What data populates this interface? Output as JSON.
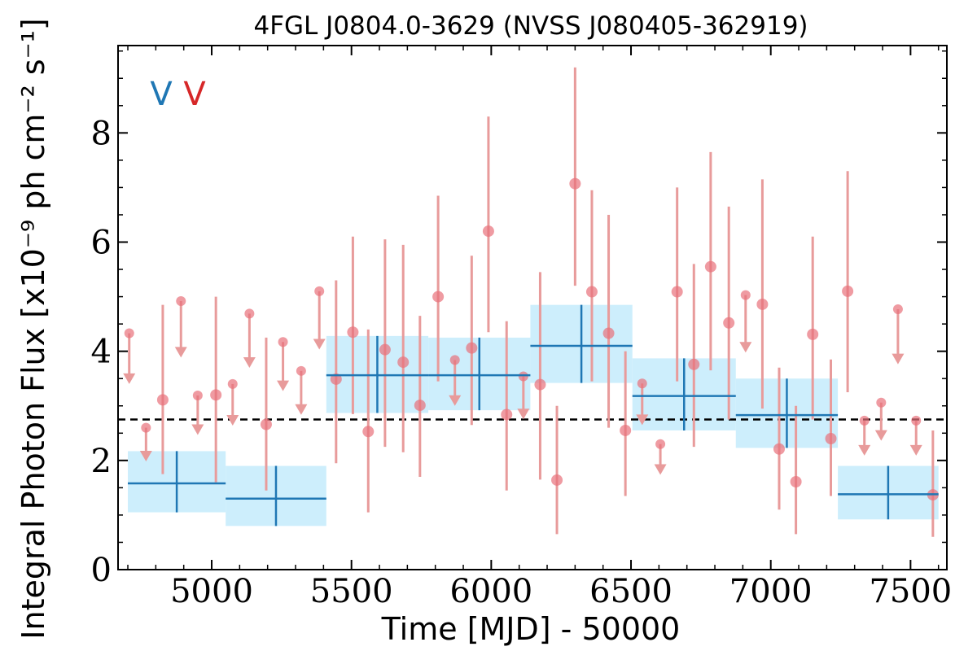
{
  "chart_data": {
    "type": "scatter",
    "title": "4FGL J0804.0-3629 (NVSS J080405-362919)",
    "xlabel": "Time [MJD] - 50000",
    "ylabel": "Integral Photon Flux [x10⁻⁹ ph cm⁻² s⁻¹]",
    "xlim": [
      4665,
      7630
    ],
    "ylim": [
      0,
      9.6
    ],
    "xticks": [
      5000,
      5500,
      6000,
      6500,
      7000,
      7500
    ],
    "yticks": [
      0,
      2,
      4,
      6,
      8
    ],
    "xtick_labels": [
      "5000",
      "5500",
      "6000",
      "6500",
      "7000",
      "7500"
    ],
    "ytick_labels": [
      "0",
      "2",
      "4",
      "6",
      "8"
    ],
    "reference_level": 2.75,
    "legend_markers": [
      {
        "text": "V",
        "color": "#1f77b4"
      },
      {
        "text": "V",
        "color": "#d62728"
      }
    ],
    "colors": {
      "monthly_points": "#e8717a",
      "monthly_errorbars": "#e89b9b",
      "yearly_band": "#cdeefc",
      "yearly_line": "#1f77b4",
      "reference_line": "#000000"
    },
    "series": [
      {
        "bin": "yearly",
        "points": [
          {
            "x0": 4700,
            "x1": 5050,
            "y": 1.58,
            "ylo": 1.05,
            "yhi": 2.17
          },
          {
            "x0": 5050,
            "x1": 5410,
            "y": 1.3,
            "ylo": 0.8,
            "yhi": 1.9
          },
          {
            "x0": 5410,
            "x1": 5775,
            "y": 3.56,
            "ylo": 2.87,
            "yhi": 4.28
          },
          {
            "x0": 5775,
            "x1": 6140,
            "y": 3.56,
            "ylo": 2.92,
            "yhi": 4.25
          },
          {
            "x0": 6140,
            "x1": 6505,
            "y": 4.1,
            "ylo": 3.42,
            "yhi": 4.85
          },
          {
            "x0": 6505,
            "x1": 6875,
            "y": 3.18,
            "ylo": 2.55,
            "yhi": 3.87
          },
          {
            "x0": 6875,
            "x1": 7240,
            "y": 2.83,
            "ylo": 2.23,
            "yhi": 3.5
          },
          {
            "x0": 7240,
            "x1": 7600,
            "y": 1.38,
            "ylo": 0.92,
            "yhi": 1.9
          }
        ]
      },
      {
        "bin": "monthly",
        "points": [
          {
            "x": 4705,
            "y": 4.33,
            "ul": true
          },
          {
            "x": 4765,
            "y": 2.6,
            "ul": true
          },
          {
            "x": 4825,
            "y": 3.11,
            "ylo": 1.75,
            "yhi": 4.85
          },
          {
            "x": 4890,
            "y": 4.92,
            "ul": true
          },
          {
            "x": 4950,
            "y": 3.19,
            "ul": true
          },
          {
            "x": 5015,
            "y": 3.2,
            "ylo": 1.6,
            "yhi": 5.0
          },
          {
            "x": 5075,
            "y": 3.4,
            "ul": true
          },
          {
            "x": 5135,
            "y": 4.69,
            "ul": true
          },
          {
            "x": 5195,
            "y": 2.66,
            "ylo": 1.45,
            "yhi": 4.25
          },
          {
            "x": 5255,
            "y": 4.17,
            "ul": true
          },
          {
            "x": 5320,
            "y": 3.64,
            "ul": true
          },
          {
            "x": 5385,
            "y": 5.1,
            "ul": true
          },
          {
            "x": 5445,
            "y": 3.49,
            "ylo": 1.95,
            "yhi": 5.3
          },
          {
            "x": 5505,
            "y": 4.35,
            "ylo": 2.85,
            "yhi": 6.1
          },
          {
            "x": 5560,
            "y": 2.53,
            "ylo": 1.05,
            "yhi": 4.4
          },
          {
            "x": 5620,
            "y": 4.03,
            "ylo": 2.25,
            "yhi": 6.05
          },
          {
            "x": 5685,
            "y": 3.8,
            "ylo": 2.15,
            "yhi": 5.95
          },
          {
            "x": 5745,
            "y": 3.01,
            "ylo": 1.7,
            "yhi": 4.65
          },
          {
            "x": 5810,
            "y": 5.0,
            "ylo": 3.45,
            "yhi": 6.85
          },
          {
            "x": 5870,
            "y": 3.84,
            "ul": true
          },
          {
            "x": 5930,
            "y": 4.06,
            "ylo": 2.65,
            "yhi": 5.75
          },
          {
            "x": 5990,
            "y": 6.2,
            "ylo": 4.35,
            "yhi": 8.3
          },
          {
            "x": 6055,
            "y": 2.84,
            "ylo": 1.45,
            "yhi": 4.55
          },
          {
            "x": 6115,
            "y": 3.54,
            "ul": true
          },
          {
            "x": 6175,
            "y": 3.39,
            "ylo": 1.65,
            "yhi": 5.45
          },
          {
            "x": 6235,
            "y": 1.64,
            "ylo": 0.65,
            "yhi": 3.0
          },
          {
            "x": 6300,
            "y": 7.07,
            "ylo": 5.2,
            "yhi": 9.2
          },
          {
            "x": 6360,
            "y": 5.09,
            "ylo": 3.45,
            "yhi": 6.95
          },
          {
            "x": 6420,
            "y": 4.33,
            "ylo": 2.6,
            "yhi": 6.5
          },
          {
            "x": 6480,
            "y": 2.55,
            "ylo": 1.35,
            "yhi": 4.0
          },
          {
            "x": 6540,
            "y": 3.41,
            "ul": true
          },
          {
            "x": 6605,
            "y": 2.3,
            "ul": true
          },
          {
            "x": 6665,
            "y": 5.09,
            "ylo": 3.45,
            "yhi": 7.0
          },
          {
            "x": 6725,
            "y": 3.76,
            "ylo": 2.25,
            "yhi": 5.6
          },
          {
            "x": 6785,
            "y": 5.55,
            "ylo": 3.65,
            "yhi": 7.65
          },
          {
            "x": 6850,
            "y": 4.52,
            "ylo": 2.75,
            "yhi": 6.65
          },
          {
            "x": 6910,
            "y": 5.03,
            "ul": true
          },
          {
            "x": 6970,
            "y": 4.86,
            "ylo": 2.95,
            "yhi": 7.15
          },
          {
            "x": 7030,
            "y": 2.21,
            "ylo": 1.1,
            "yhi": 3.7
          },
          {
            "x": 7090,
            "y": 1.61,
            "ylo": 0.65,
            "yhi": 3.0
          },
          {
            "x": 7150,
            "y": 4.31,
            "ylo": 2.75,
            "yhi": 6.1
          },
          {
            "x": 7215,
            "y": 2.4,
            "ylo": 1.35,
            "yhi": 3.85
          },
          {
            "x": 7275,
            "y": 5.1,
            "ylo": 3.25,
            "yhi": 7.3
          },
          {
            "x": 7335,
            "y": 2.73,
            "ul": true
          },
          {
            "x": 7395,
            "y": 3.06,
            "ul": true
          },
          {
            "x": 7455,
            "y": 4.77,
            "ul": true
          },
          {
            "x": 7520,
            "y": 2.73,
            "ul": true
          },
          {
            "x": 7580,
            "y": 1.37,
            "ylo": 0.6,
            "yhi": 2.55
          }
        ]
      }
    ]
  }
}
